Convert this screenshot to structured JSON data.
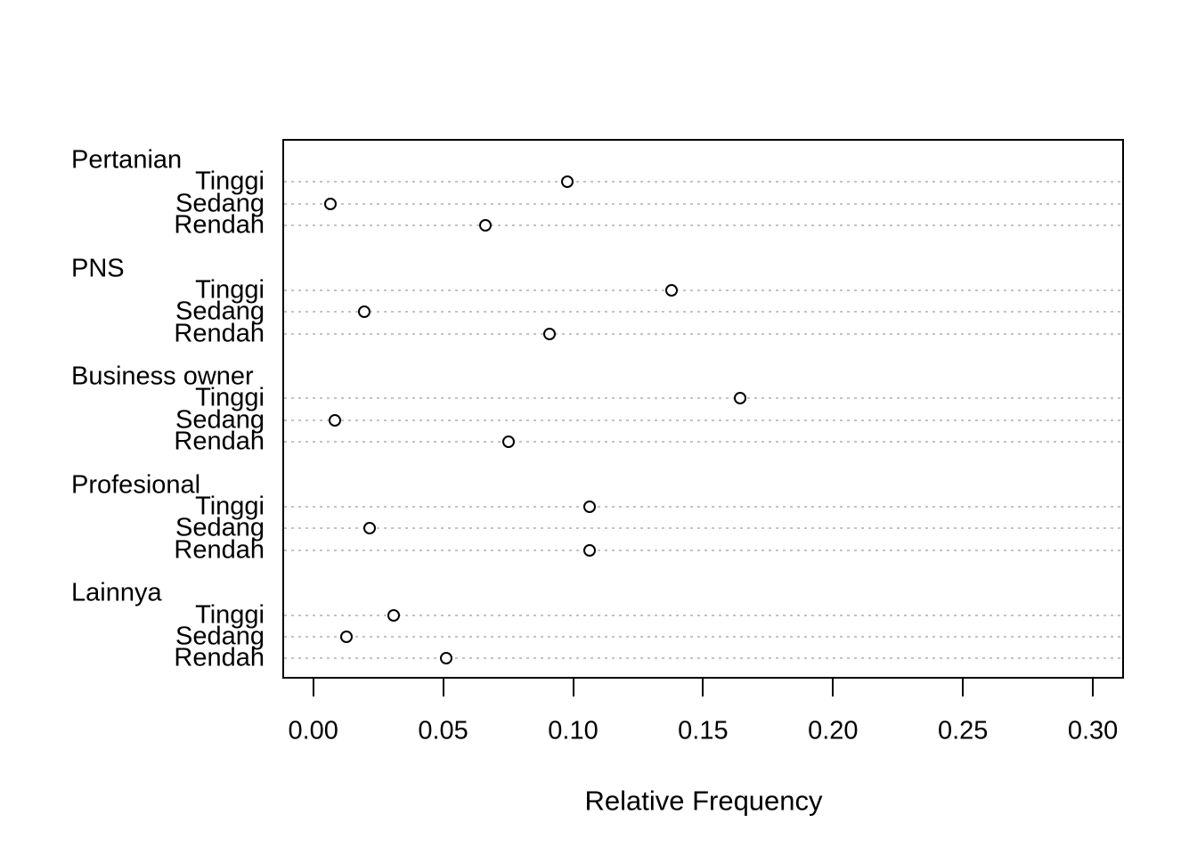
{
  "chart_data": {
    "type": "scatter",
    "variant": "grouped-dotchart",
    "title": "",
    "xlabel": "Relative Frequency",
    "ylabel": "",
    "xlim": [
      0.0,
      0.31
    ],
    "xticks": [
      0.0,
      0.05,
      0.1,
      0.15,
      0.2,
      0.25,
      0.3
    ],
    "xtick_labels": [
      "0.00",
      "0.05",
      "0.10",
      "0.15",
      "0.20",
      "0.25",
      "0.30"
    ],
    "grid": "horizontal dotted line per data row",
    "legend": "none",
    "point_style": "open circle, black stroke, white fill",
    "colors": {
      "point_stroke": "#000000",
      "grid": "#c3c3c3",
      "text": "#000000",
      "box": "#000000",
      "background": "#ffffff"
    },
    "groups": [
      {
        "label": "Pertanian",
        "items": [
          {
            "label": "Tinggi",
            "value": 0.0977
          },
          {
            "label": "Sedang",
            "value": 0.0065
          },
          {
            "label": "Rendah",
            "value": 0.0662
          }
        ]
      },
      {
        "label": "PNS",
        "items": [
          {
            "label": "Tinggi",
            "value": 0.1379
          },
          {
            "label": "Sedang",
            "value": 0.0196
          },
          {
            "label": "Rendah",
            "value": 0.0908
          }
        ]
      },
      {
        "label": "Business owner",
        "items": [
          {
            "label": "Tinggi",
            "value": 0.1643
          },
          {
            "label": "Sedang",
            "value": 0.0082
          },
          {
            "label": "Rendah",
            "value": 0.0752
          }
        ]
      },
      {
        "label": "Profesional",
        "items": [
          {
            "label": "Tinggi",
            "value": 0.1062
          },
          {
            "label": "Sedang",
            "value": 0.0218
          },
          {
            "label": "Rendah",
            "value": 0.1062
          }
        ]
      },
      {
        "label": "Lainnya",
        "items": [
          {
            "label": "Tinggi",
            "value": 0.031
          },
          {
            "label": "Sedang",
            "value": 0.0129
          },
          {
            "label": "Rendah",
            "value": 0.0513
          }
        ]
      }
    ]
  }
}
